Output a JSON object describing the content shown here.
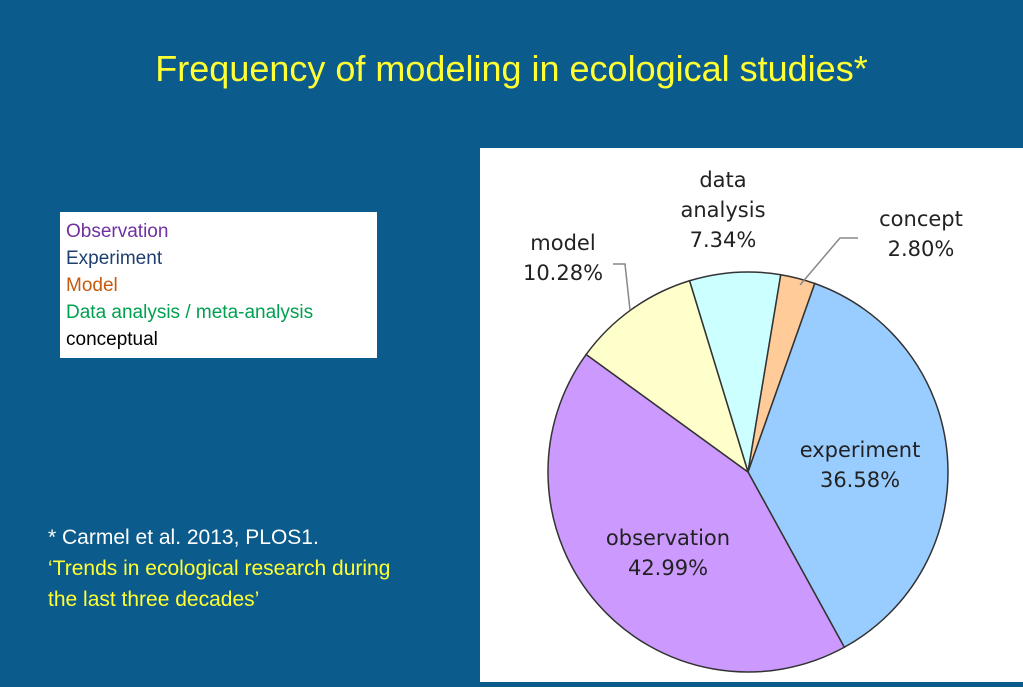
{
  "header": {
    "title": "Frequency of modeling in ecological studies*"
  },
  "legend_box": {
    "items": [
      {
        "text": "Observation",
        "color": "#7030a0"
      },
      {
        "text": "Experiment",
        "color": "#1f3f6e"
      },
      {
        "text": "Model",
        "color": "#c55a11"
      },
      {
        "text": "Data analysis / meta-analysis",
        "color": "#00a050"
      },
      {
        "text": "conceptual",
        "color": "#000000"
      }
    ]
  },
  "citation": {
    "source": "* Carmel et al. 2013, PLOS1.",
    "title": "‘Trends in ecological  research during the last three decades’"
  },
  "chart_data": {
    "type": "pie",
    "categories": [
      "data analysis",
      "concept",
      "experiment",
      "observation",
      "model"
    ],
    "values": [
      7.34,
      2.8,
      36.58,
      42.99,
      10.28
    ],
    "value_labels": [
      "7.34%",
      "2.80%",
      "36.58%",
      "42.99%",
      "10.28%"
    ],
    "colors": [
      "#ccffff",
      "#ffcc99",
      "#99ccff",
      "#cc99ff",
      "#ffffcc"
    ]
  }
}
